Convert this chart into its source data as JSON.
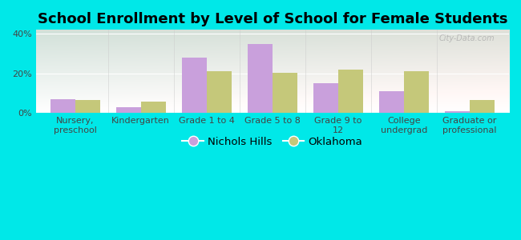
{
  "title": "School Enrollment by Level of School for Female Students",
  "categories": [
    "Nursery,\npreschool",
    "Kindergarten",
    "Grade 1 to 4",
    "Grade 5 to 8",
    "Grade 9 to\n12",
    "College\nundergrad",
    "Graduate or\nprofessional"
  ],
  "nichols_hills": [
    7,
    3,
    28,
    35,
    15,
    11,
    1
  ],
  "oklahoma": [
    6.5,
    6,
    21,
    20.5,
    22,
    21,
    6.5
  ],
  "bar_color_nichols": "#c9a0dc",
  "bar_color_oklahoma": "#c5c87a",
  "background_color": "#00e8e8",
  "ylim": [
    0,
    42
  ],
  "yticks": [
    0,
    20,
    40
  ],
  "ytick_labels": [
    "0%",
    "20%",
    "40%"
  ],
  "legend_nichols": "Nichols Hills",
  "legend_oklahoma": "Oklahoma",
  "bar_width": 0.38,
  "title_fontsize": 13,
  "tick_fontsize": 8,
  "legend_fontsize": 9.5
}
